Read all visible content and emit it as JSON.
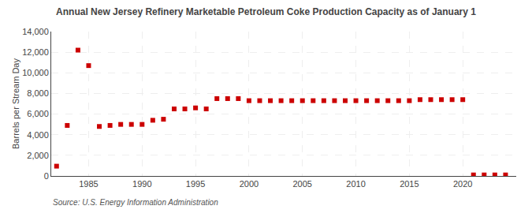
{
  "chart_data": {
    "type": "scatter",
    "title": "Annual New Jersey Refinery Marketable Petroleum Coke Production Capacity as of January 1",
    "ylabel": "Barrels per Stream Day",
    "annotations": [
      "Source: U.S. Energy Information Administration"
    ],
    "color": "#cc0000",
    "marker": "square",
    "x": [
      1982,
      1983,
      1984,
      1985,
      1986,
      1987,
      1988,
      1989,
      1990,
      1991,
      1992,
      1993,
      1994,
      1995,
      1996,
      1997,
      1998,
      1999,
      2000,
      2001,
      2002,
      2003,
      2004,
      2005,
      2006,
      2007,
      2008,
      2009,
      2010,
      2011,
      2012,
      2013,
      2014,
      2015,
      2016,
      2017,
      2018,
      2019,
      2020,
      2021,
      2022,
      2023,
      2024
    ],
    "values": [
      950,
      4900,
      12200,
      10700,
      4800,
      4900,
      5000,
      5000,
      5000,
      5400,
      5500,
      6500,
      6500,
      6600,
      6500,
      7500,
      7500,
      7500,
      7300,
      7300,
      7300,
      7300,
      7300,
      7300,
      7300,
      7300,
      7300,
      7300,
      7300,
      7300,
      7300,
      7300,
      7300,
      7300,
      7400,
      7400,
      7400,
      7400,
      7400,
      100,
      100,
      100,
      100
    ],
    "xlim": [
      1981.5,
      2025
    ],
    "xticks": [
      1985,
      1990,
      1995,
      2000,
      2005,
      2010,
      2015,
      2020
    ],
    "ylim": [
      0,
      14000
    ],
    "yticks": [
      0,
      {
        "value": 2000,
        "label": "2,000"
      },
      {
        "value": 4000,
        "label": "4,000"
      },
      {
        "value": 6000,
        "label": "6,000"
      },
      {
        "value": 8000,
        "label": "8,000"
      },
      {
        "value": 10000,
        "label": "10,000"
      },
      {
        "value": 12000,
        "label": "12,000"
      },
      {
        "value": 14000,
        "label": "14,000"
      }
    ],
    "grid": true
  }
}
